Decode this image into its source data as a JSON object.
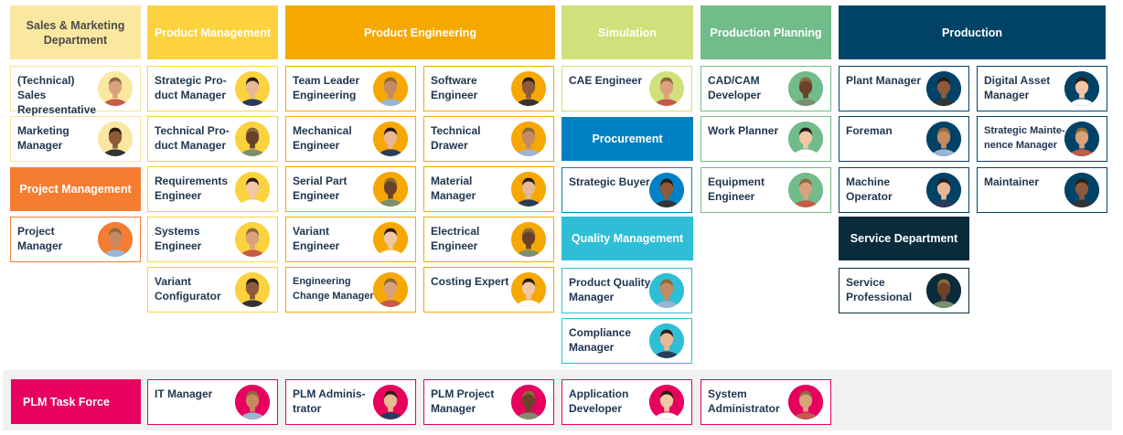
{
  "colors": {
    "sales": "#fbe8a0",
    "product_mgmt": "#fcd23f",
    "product_eng": "#f6a800",
    "simulation": "#d1e07a",
    "production_planning": "#72bb8a",
    "production": "#004366",
    "project_mgmt": "#f47d32",
    "procurement": "#0081c6",
    "quality": "#2ebed5",
    "service": "#0a2b3c",
    "plm": "#e7005e",
    "text_dark": "#1e3550"
  },
  "headers": {
    "sales": "Sales & Marketing Department",
    "product_mgmt": "Product Management",
    "product_eng": "Product Engineering",
    "simulation": "Simulation",
    "production_planning": "Production Planning",
    "production": "Production",
    "project_mgmt": "Project Management",
    "procurement": "Procurement",
    "quality": "Quality Management",
    "service": "Service Department",
    "plm": "PLM Task Force"
  },
  "roles": {
    "sales_rep": "(Technical) Sales Representative",
    "marketing_mgr": "Marketing Manager",
    "project_mgr": "Project Manager",
    "strategic_pm": "Strategic Pro-duct Manager",
    "technical_pm": "Technical Pro-duct Manager",
    "requirements_eng": "Requirements Engineer",
    "systems_eng": "Systems Engineer",
    "variant_config": "Variant Configurator",
    "team_leader": "Team Leader Engineering",
    "mechanical_eng": "Mechanical Engineer",
    "serial_part_eng": "Serial Part Engineer",
    "variant_eng": "Variant Engineer",
    "eng_change_mgr": "Engineering Change Manager",
    "software_eng": "Software Engineer",
    "technical_drawer": "Technical Drawer",
    "material_mgr": "Material Manager",
    "electrical_eng": "Electrical Engineer",
    "costing_expert": "Costing Expert",
    "cae_eng": "CAE Engineer",
    "strategic_buyer": "Strategic Buyer",
    "product_quality_mgr": "Product Quality Manager",
    "compliance_mgr": "Compliance Manager",
    "cadcam_dev": "CAD/CAM Developer",
    "work_planner": "Work Planner",
    "equipment_eng": "Equipment Engineer",
    "plant_mgr": "Plant Manager",
    "foreman": "Foreman",
    "machine_operator": "Machine Operator",
    "service_professional": "Service Professional",
    "digital_asset_mgr": "Digital Asset Manager",
    "strategic_maint_mgr": "Strategic Mainte-nence Manager",
    "maintainer": "Maintainer",
    "it_mgr": "IT Manager",
    "plm_admin": "PLM Adminis-trator",
    "plm_project_mgr": "PLM Project Manager",
    "app_dev": "Application Developer",
    "sys_admin": "System Administrator"
  }
}
